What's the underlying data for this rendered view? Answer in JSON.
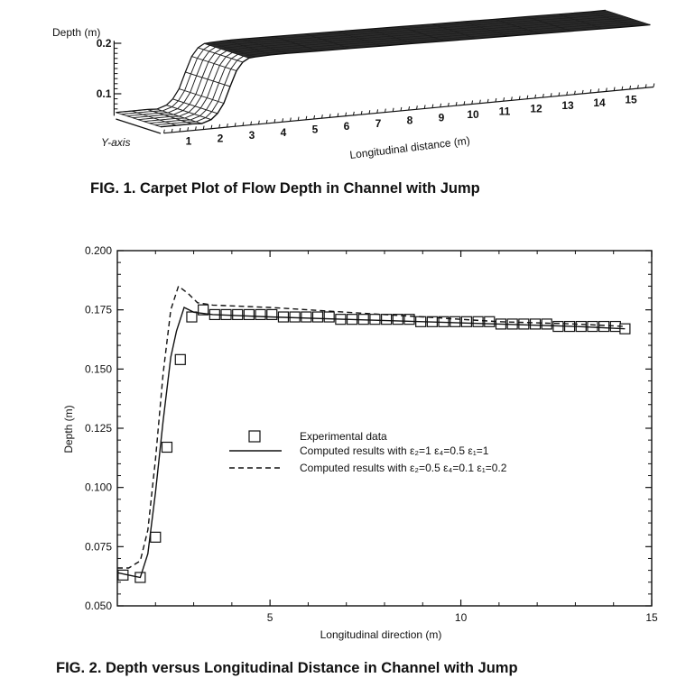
{
  "fig1": {
    "caption": "FIG. 1.   Carpet Plot of Flow Depth in Channel with Jump",
    "chart_data": {
      "type": "surface",
      "zlabel": "Depth (m)",
      "ylabel": "Y-axis",
      "xlabel": "Longitudinal distance (m)",
      "z_ticks": [
        "0.2",
        "0.1"
      ],
      "x_ticks": [
        "1",
        "2",
        "3",
        "4",
        "5",
        "6",
        "7",
        "8",
        "9",
        "10",
        "11",
        "12",
        "13",
        "14",
        "15"
      ],
      "x": [
        0,
        0.5,
        1,
        1.3,
        1.6,
        1.8,
        2,
        2.2,
        2.4,
        2.6,
        2.8,
        3,
        3.5,
        4,
        5,
        6,
        7,
        8,
        9,
        10,
        11,
        12,
        13,
        14,
        15,
        15.5
      ],
      "z": [
        0.063,
        0.063,
        0.063,
        0.062,
        0.068,
        0.079,
        0.098,
        0.13,
        0.16,
        0.176,
        0.183,
        0.184,
        0.185,
        0.185,
        0.184,
        0.183,
        0.182,
        0.181,
        0.18,
        0.179,
        0.178,
        0.177,
        0.176,
        0.175,
        0.174,
        0.174
      ]
    }
  },
  "fig2": {
    "caption": "FIG. 2.   Depth versus Longitudinal Distance in Channel with Jump",
    "chart_data": {
      "type": "line",
      "xlabel": "Longitudinal direction (m)",
      "ylabel": "Depth (m)",
      "xlim": [
        1,
        15
      ],
      "ylim": [
        0.05,
        0.2
      ],
      "x_ticks": [
        "5",
        "10",
        "15"
      ],
      "y_ticks": [
        "0.050",
        "0.075",
        "0.100",
        "0.125",
        "0.150",
        "0.175",
        "0.200"
      ],
      "series": [
        {
          "name": "Experimental data",
          "style": "markers-square",
          "x": [
            1.15,
            1.6,
            2.0,
            2.3,
            2.65,
            2.95,
            3.25,
            3.55,
            3.85,
            4.15,
            4.45,
            4.75,
            5.05,
            5.35,
            5.65,
            5.95,
            6.25,
            6.55,
            6.85,
            7.15,
            7.45,
            7.75,
            8.05,
            8.35,
            8.65,
            8.95,
            9.25,
            9.55,
            9.85,
            10.15,
            10.45,
            10.75,
            11.05,
            11.35,
            11.65,
            11.95,
            12.25,
            12.55,
            12.85,
            13.15,
            13.45,
            13.75,
            14.05,
            14.3
          ],
          "y": [
            0.063,
            0.062,
            0.079,
            0.117,
            0.154,
            0.172,
            0.175,
            0.173,
            0.173,
            0.173,
            0.173,
            0.173,
            0.173,
            0.172,
            0.172,
            0.172,
            0.172,
            0.172,
            0.171,
            0.171,
            0.171,
            0.171,
            0.171,
            0.171,
            0.171,
            0.17,
            0.17,
            0.17,
            0.17,
            0.17,
            0.17,
            0.17,
            0.169,
            0.169,
            0.169,
            0.169,
            0.169,
            0.168,
            0.168,
            0.168,
            0.168,
            0.168,
            0.168,
            0.167
          ]
        },
        {
          "name": "Computed results with ε₂=1 ε₄=0.5 ε₁=1",
          "style": "solid",
          "x": [
            1.0,
            1.3,
            1.6,
            1.8,
            2.0,
            2.2,
            2.4,
            2.55,
            2.75,
            3.0,
            3.5,
            5,
            7,
            9,
            11,
            13,
            14.3
          ],
          "y": [
            0.064,
            0.063,
            0.062,
            0.072,
            0.098,
            0.128,
            0.155,
            0.166,
            0.176,
            0.174,
            0.173,
            0.172,
            0.171,
            0.17,
            0.169,
            0.168,
            0.167
          ]
        },
        {
          "name": "Computed results with ε₂=0.5 ε₄=0.1 ε₁=0.2",
          "style": "dashed",
          "x": [
            1.0,
            1.3,
            1.6,
            1.8,
            2.0,
            2.2,
            2.4,
            2.6,
            2.85,
            3.1,
            3.5,
            5,
            7,
            9,
            11,
            13,
            14.3
          ],
          "y": [
            0.066,
            0.066,
            0.069,
            0.082,
            0.112,
            0.148,
            0.175,
            0.185,
            0.182,
            0.178,
            0.177,
            0.176,
            0.174,
            0.172,
            0.17,
            0.169,
            0.168
          ]
        }
      ],
      "legend_position": "center-right"
    }
  }
}
